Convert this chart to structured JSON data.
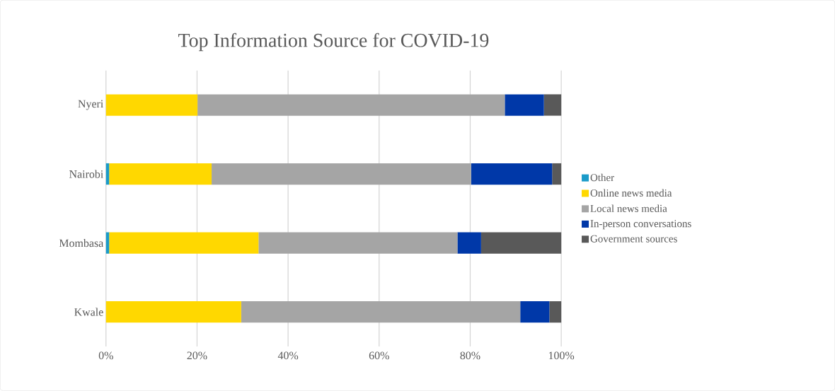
{
  "chart_data": {
    "type": "bar",
    "orientation": "horizontal",
    "stacked": true,
    "title": "Top Information Source for COVID-19",
    "categories": [
      "Nyeri",
      "Nairobi",
      "Mombasa",
      "Kwale"
    ],
    "series": [
      {
        "name": "Other",
        "color": "#1a9bc9",
        "values": [
          0,
          0.7,
          0.7,
          0
        ]
      },
      {
        "name": "Online news media",
        "color": "#ffd800",
        "values": [
          20.1,
          22.5,
          32.8,
          29.7
        ]
      },
      {
        "name": "Local news media",
        "color": "#a5a5a5",
        "values": [
          67.5,
          57.0,
          43.7,
          61.3
        ]
      },
      {
        "name": "In-person conversations",
        "color": "#0038a8",
        "values": [
          8.6,
          17.8,
          5.2,
          6.4
        ]
      },
      {
        "name": "Government sources",
        "color": "#595959",
        "values": [
          3.8,
          2.0,
          17.6,
          2.6
        ]
      }
    ],
    "xlim": [
      0,
      100
    ],
    "xticks": [
      {
        "value": 0,
        "label": "0%"
      },
      {
        "value": 20,
        "label": "20%"
      },
      {
        "value": 40,
        "label": "40%"
      },
      {
        "value": 60,
        "label": "60%"
      },
      {
        "value": 80,
        "label": "80%"
      },
      {
        "value": 100,
        "label": "100%"
      }
    ],
    "grid": "x",
    "legend": "right"
  }
}
